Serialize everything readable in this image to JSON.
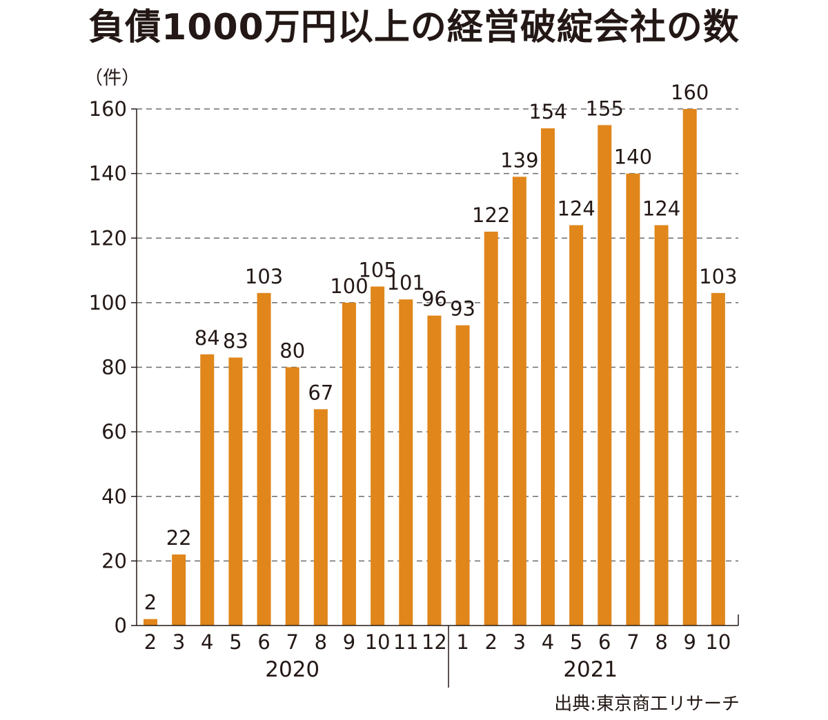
{
  "title": "負債1000万円以上の経営破綻会社の数",
  "unit_label": "（件）",
  "source": "出典:東京商工リサーチ",
  "colors": {
    "bar": "#e0861b",
    "text": "#231815",
    "grid": "#6b6b6b"
  },
  "chart_data": {
    "type": "bar",
    "categories": [
      "2",
      "3",
      "4",
      "5",
      "6",
      "7",
      "8",
      "9",
      "10",
      "11",
      "12",
      "1",
      "2",
      "3",
      "4",
      "5",
      "6",
      "7",
      "8",
      "9",
      "10"
    ],
    "years": [
      {
        "label": "2020",
        "from": 0,
        "to": 10
      },
      {
        "label": "2021",
        "from": 11,
        "to": 20
      }
    ],
    "series": [
      {
        "values": [
          2,
          22,
          84,
          83,
          103,
          80,
          67,
          100,
          105,
          101,
          96,
          93,
          122,
          139,
          154,
          124,
          155,
          140,
          124,
          160,
          103
        ]
      }
    ],
    "data_labels": [
      "2",
      "22",
      "84",
      "83",
      "103",
      "80",
      "67",
      "100",
      "105",
      "101",
      "96",
      "93",
      "122",
      "139",
      "154",
      "124",
      "155",
      "140",
      "124",
      "160",
      "103"
    ],
    "ylim": [
      0,
      160
    ],
    "yticks": [
      0,
      20,
      40,
      60,
      80,
      100,
      120,
      140,
      160
    ],
    "grid": "dashed horizontal"
  }
}
